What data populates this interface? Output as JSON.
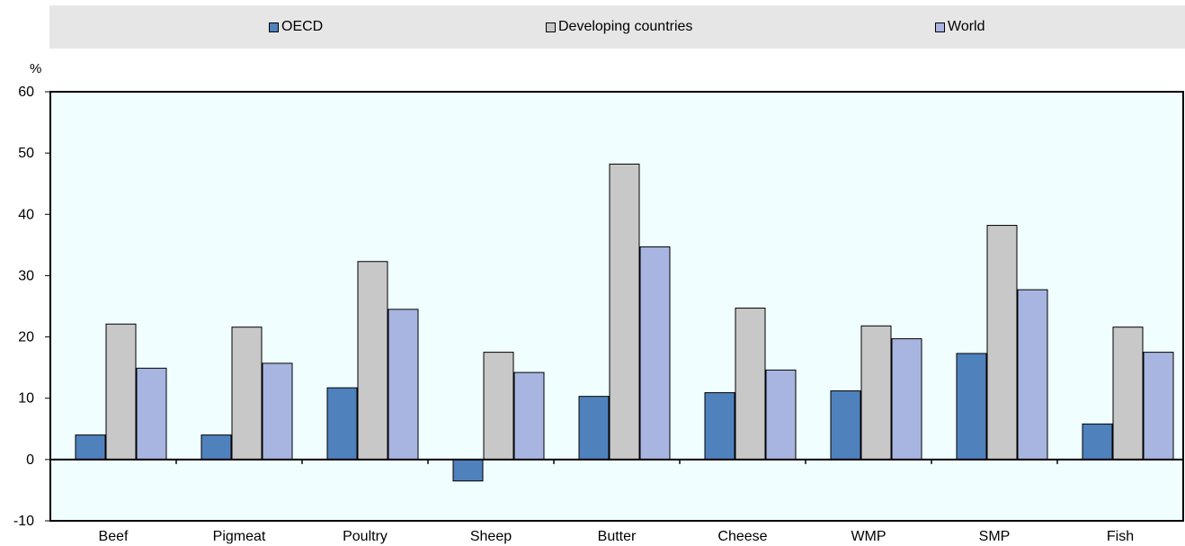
{
  "legend": {
    "items": [
      {
        "label": "OECD",
        "color": "#4f81bd"
      },
      {
        "label": "Developing countries",
        "color": "#c8c8c8"
      },
      {
        "label": "World",
        "color": "#a7b5e0"
      }
    ]
  },
  "chart_data": {
    "type": "bar",
    "ylabel": "%",
    "ylim": [
      -10,
      60
    ],
    "yticks": [
      -10,
      0,
      10,
      20,
      30,
      40,
      50,
      60
    ],
    "categories": [
      "Beef",
      "Pigmeat",
      "Poultry",
      "Sheep",
      "Butter",
      "Cheese",
      "WMP",
      "SMP",
      "Fish"
    ],
    "series": [
      {
        "name": "OECD",
        "color": "#4f81bd",
        "values": [
          4.0,
          4.0,
          11.7,
          -3.5,
          10.3,
          10.9,
          11.2,
          17.3,
          5.8
        ]
      },
      {
        "name": "Developing countries",
        "color": "#c8c8c8",
        "values": [
          22.1,
          21.6,
          32.3,
          17.5,
          48.2,
          24.7,
          21.8,
          38.2,
          21.6
        ]
      },
      {
        "name": "World",
        "color": "#a7b5e0",
        "values": [
          14.9,
          15.7,
          24.5,
          14.2,
          34.7,
          14.6,
          19.7,
          27.7,
          17.5
        ]
      }
    ],
    "plot_background": "#f0feff",
    "grid": false,
    "legend_position": "top"
  }
}
